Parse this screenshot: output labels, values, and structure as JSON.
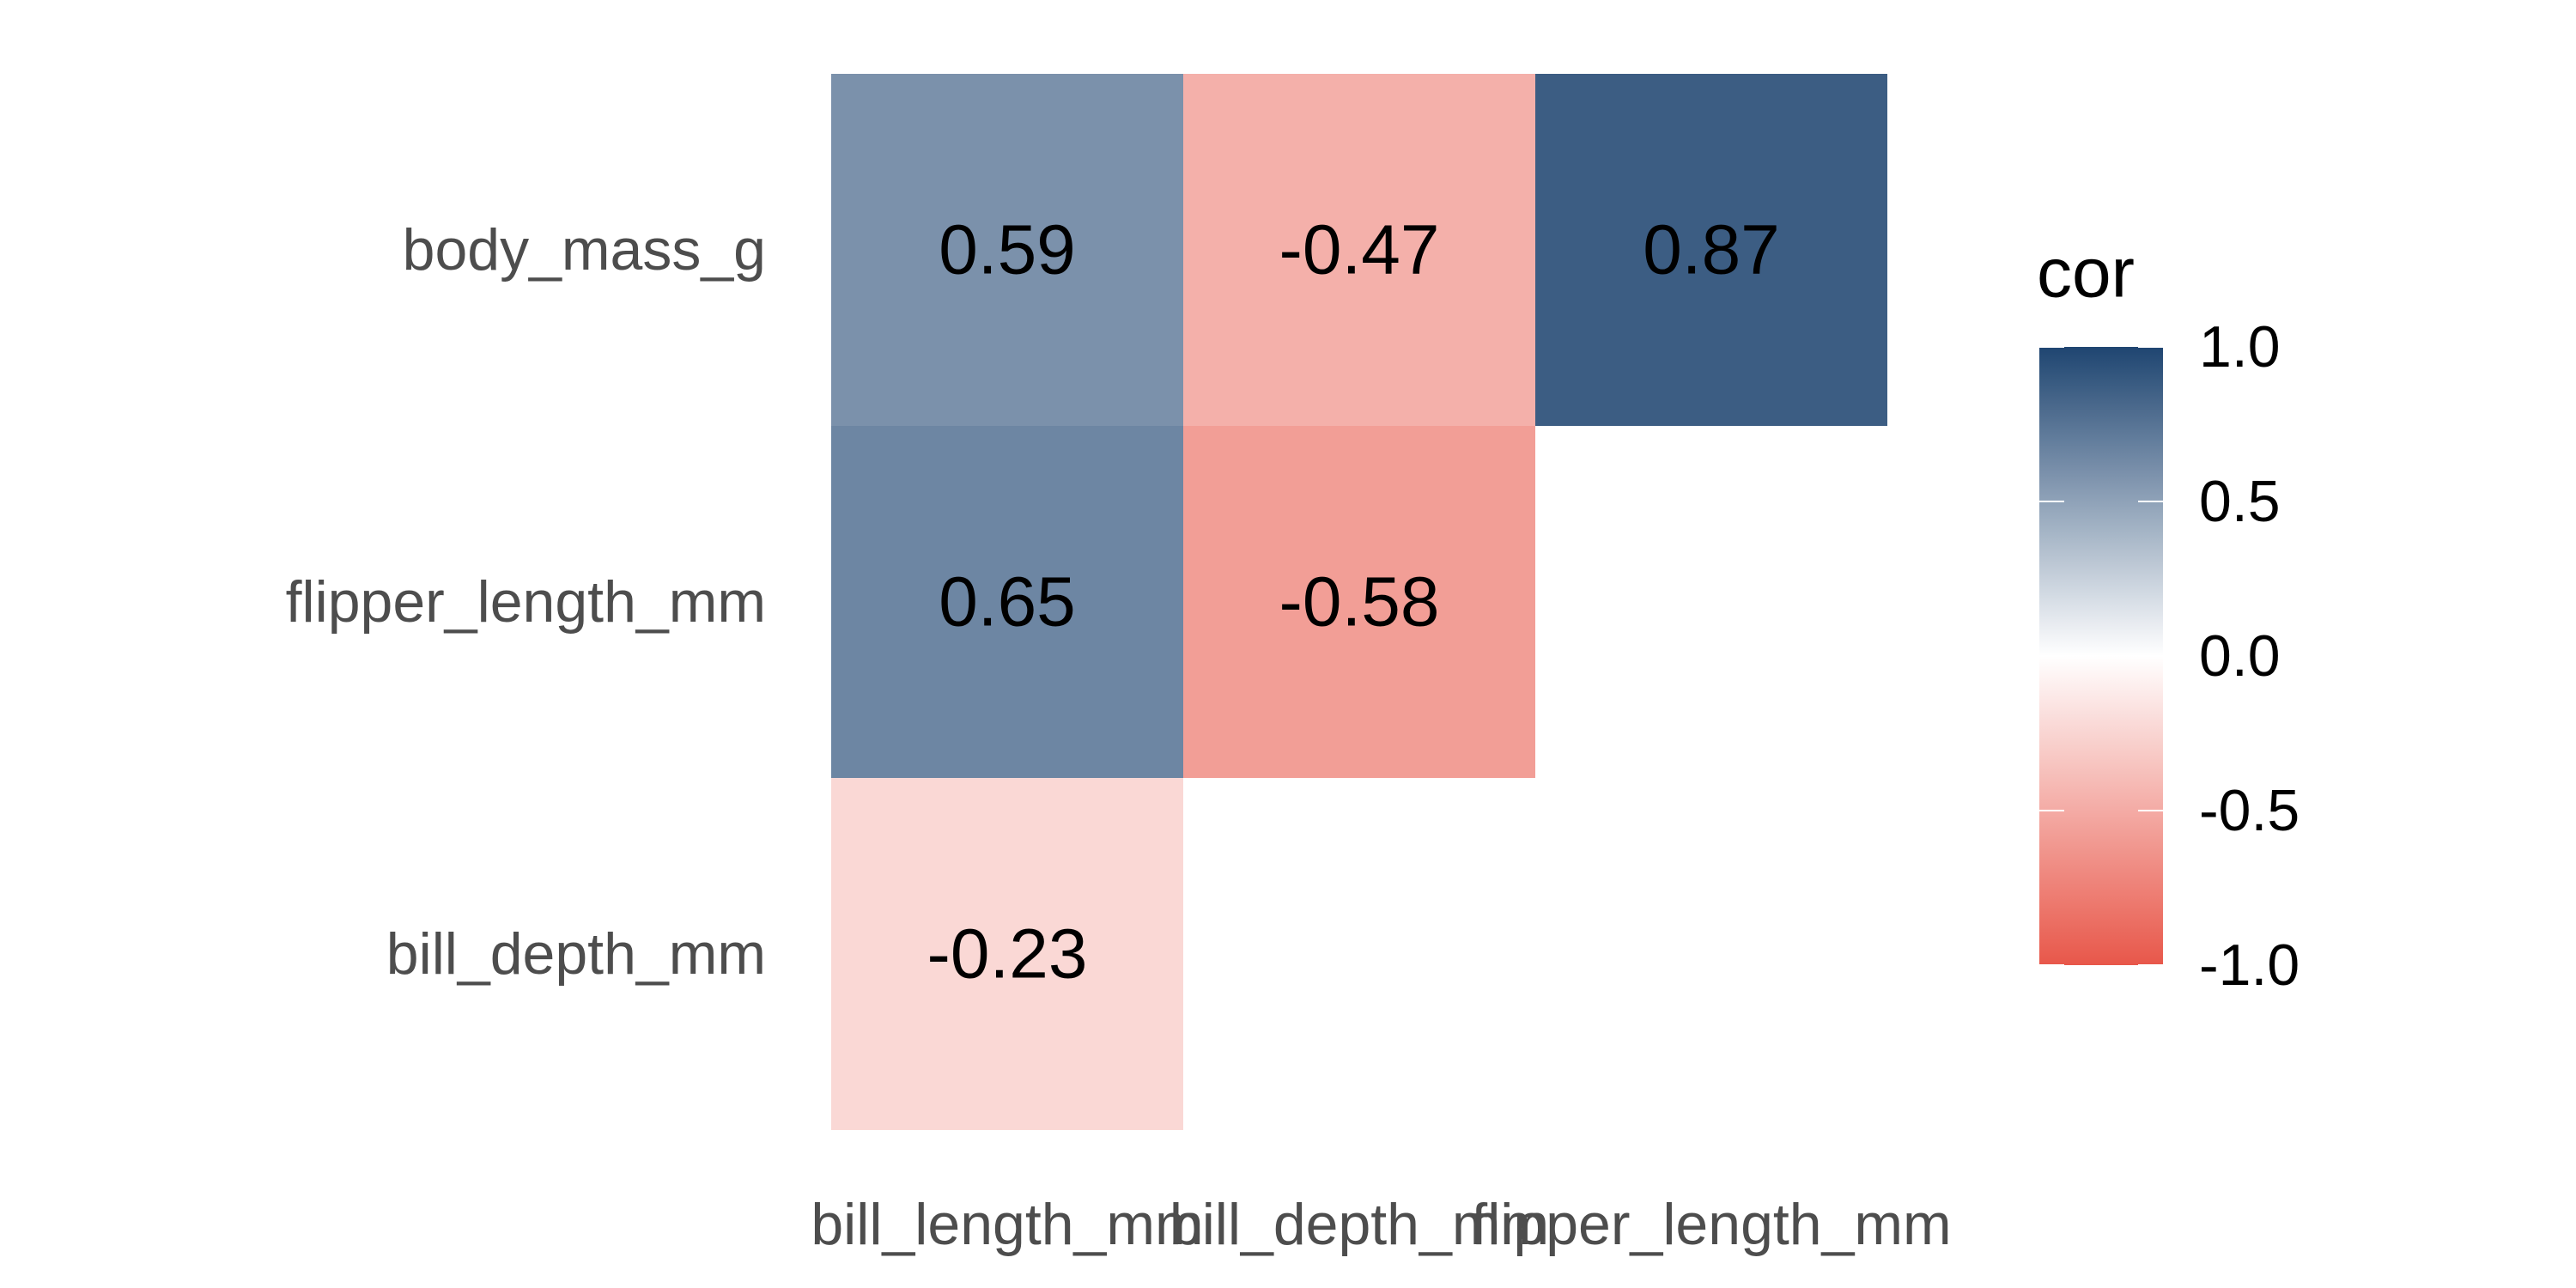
{
  "chart_data": {
    "type": "heatmap",
    "x_categories": [
      "bill_length_mm",
      "bill_depth_mm",
      "flipper_length_mm"
    ],
    "y_categories": [
      "bill_depth_mm",
      "flipper_length_mm",
      "body_mass_g"
    ],
    "cells": [
      {
        "x": "bill_length_mm",
        "y": "bill_depth_mm",
        "value": -0.23,
        "label": "-0.23"
      },
      {
        "x": "bill_length_mm",
        "y": "flipper_length_mm",
        "value": 0.65,
        "label": "0.65"
      },
      {
        "x": "bill_depth_mm",
        "y": "flipper_length_mm",
        "value": -0.58,
        "label": "-0.58"
      },
      {
        "x": "bill_length_mm",
        "y": "body_mass_g",
        "value": 0.59,
        "label": "0.59"
      },
      {
        "x": "bill_depth_mm",
        "y": "body_mass_g",
        "value": -0.47,
        "label": "-0.47"
      },
      {
        "x": "flipper_length_mm",
        "y": "body_mass_g",
        "value": 0.87,
        "label": "0.87"
      }
    ],
    "legend": {
      "title": "cor",
      "ticks": [
        {
          "value": 1.0,
          "label": "1.0"
        },
        {
          "value": 0.5,
          "label": "0.5"
        },
        {
          "value": 0.0,
          "label": "0.0"
        },
        {
          "value": -0.5,
          "label": "-0.5"
        },
        {
          "value": -1.0,
          "label": "-1.0"
        }
      ],
      "range": [
        -1.0,
        1.0
      ],
      "placement": "right"
    },
    "colors": {
      "high": "#1f4571",
      "mid": "#ffffff",
      "low": "#e8574a"
    },
    "grid": false
  }
}
